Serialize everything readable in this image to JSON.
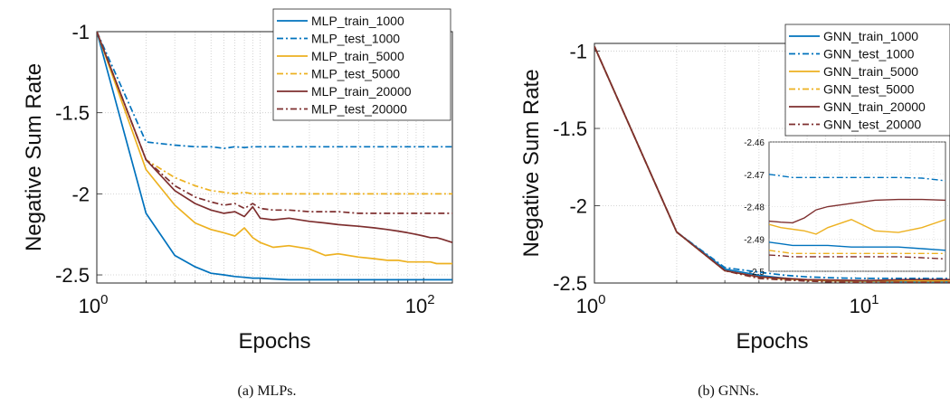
{
  "captions": [
    "(a)  MLPs.",
    "(b)  GNNs."
  ],
  "chart_data": [
    {
      "type": "line",
      "xlabel": "Epochs",
      "ylabel": "Negative Sum Rate",
      "xscale": "log",
      "xlim": [
        1,
        150
      ],
      "ylim": [
        -2.55,
        -1
      ],
      "grid": "dotted",
      "legend": "top-right",
      "x_tick_labels": [
        {
          "base": "10",
          "exp": "0"
        },
        {
          "base": "10",
          "exp": "2"
        }
      ],
      "y_tick_labels": [
        "-1",
        "-1.5",
        "-2",
        "-2.5"
      ],
      "x": [
        1,
        2,
        3,
        4,
        5,
        6,
        7,
        8,
        9,
        10,
        12,
        15,
        20,
        25,
        30,
        40,
        50,
        60,
        70,
        80,
        90,
        100,
        110,
        120,
        130,
        140,
        150
      ],
      "series": [
        {
          "name": "MLP_train_1000",
          "color": "#0072BD",
          "dash": "solid",
          "values": [
            -1.0,
            -2.12,
            -2.38,
            -2.45,
            -2.49,
            -2.5,
            -2.51,
            -2.515,
            -2.52,
            -2.52,
            -2.525,
            -2.53,
            -2.53,
            -2.53,
            -2.53,
            -2.53,
            -2.53,
            -2.53,
            -2.53,
            -2.53,
            -2.53,
            -2.53,
            -2.53,
            -2.53,
            -2.53,
            -2.53,
            -2.53
          ]
        },
        {
          "name": "MLP_test_1000",
          "color": "#0072BD",
          "dash": "dash-dot",
          "values": [
            -1.0,
            -1.68,
            -1.7,
            -1.71,
            -1.71,
            -1.72,
            -1.71,
            -1.715,
            -1.71,
            -1.71,
            -1.71,
            -1.71,
            -1.71,
            -1.71,
            -1.71,
            -1.71,
            -1.71,
            -1.71,
            -1.71,
            -1.71,
            -1.71,
            -1.71,
            -1.71,
            -1.71,
            -1.71,
            -1.71,
            -1.71
          ]
        },
        {
          "name": "MLP_train_5000",
          "color": "#EDB120",
          "dash": "solid",
          "values": [
            -1.0,
            -1.85,
            -2.07,
            -2.18,
            -2.22,
            -2.24,
            -2.26,
            -2.21,
            -2.27,
            -2.3,
            -2.33,
            -2.32,
            -2.34,
            -2.38,
            -2.37,
            -2.39,
            -2.4,
            -2.41,
            -2.41,
            -2.42,
            -2.42,
            -2.42,
            -2.42,
            -2.43,
            -2.43,
            -2.43,
            -2.43
          ]
        },
        {
          "name": "MLP_test_5000",
          "color": "#EDB120",
          "dash": "dash-dot",
          "values": [
            -1.0,
            -1.79,
            -1.9,
            -1.95,
            -1.98,
            -1.99,
            -2.0,
            -1.99,
            -2.0,
            -2.0,
            -2.0,
            -2.0,
            -2.0,
            -2.0,
            -2.0,
            -2.0,
            -2.0,
            -2.0,
            -2.0,
            -2.0,
            -2.0,
            -2.0,
            -2.0,
            -2.0,
            -2.0,
            -2.0,
            -2.0
          ]
        },
        {
          "name": "MLP_train_20000",
          "color": "#7E2F2F",
          "dash": "solid",
          "values": [
            -1.0,
            -1.79,
            -1.98,
            -2.06,
            -2.1,
            -2.12,
            -2.11,
            -2.14,
            -2.08,
            -2.15,
            -2.16,
            -2.15,
            -2.17,
            -2.18,
            -2.19,
            -2.2,
            -2.21,
            -2.22,
            -2.23,
            -2.24,
            -2.25,
            -2.26,
            -2.27,
            -2.27,
            -2.28,
            -2.29,
            -2.3
          ]
        },
        {
          "name": "MLP_test_20000",
          "color": "#7E2F2F",
          "dash": "dash-dot",
          "values": [
            -1.0,
            -1.79,
            -1.95,
            -2.02,
            -2.05,
            -2.07,
            -2.06,
            -2.09,
            -2.06,
            -2.09,
            -2.1,
            -2.1,
            -2.11,
            -2.11,
            -2.11,
            -2.12,
            -2.12,
            -2.12,
            -2.12,
            -2.12,
            -2.12,
            -2.12,
            -2.12,
            -2.12,
            -2.12,
            -2.12,
            -2.12
          ]
        }
      ]
    },
    {
      "type": "line",
      "xlabel": "Epochs",
      "ylabel": "Negative Sum Rate",
      "xscale": "log",
      "xlim": [
        1,
        20
      ],
      "ylim": [
        -2.5,
        -0.95
      ],
      "grid": "dotted",
      "legend": "top-right",
      "x_tick_labels": [
        {
          "base": "10",
          "exp": "0"
        },
        {
          "base": "10",
          "exp": "1"
        }
      ],
      "y_tick_labels": [
        "-1",
        "-1.5",
        "-2",
        "-2.5"
      ],
      "x": [
        1,
        2,
        3,
        4,
        5,
        6,
        7,
        8,
        9,
        10,
        12,
        14,
        16,
        18,
        20
      ],
      "series": [
        {
          "name": "GNN_train_1000",
          "color": "#0072BD",
          "dash": "solid",
          "values": [
            -0.97,
            -2.17,
            -2.41,
            -2.45,
            -2.47,
            -2.48,
            -2.485,
            -2.488,
            -2.489,
            -2.49,
            -2.491,
            -2.491,
            -2.491,
            -2.491,
            -2.491
          ]
        },
        {
          "name": "GNN_test_1000",
          "color": "#0072BD",
          "dash": "dash-dot",
          "values": [
            -0.97,
            -2.17,
            -2.4,
            -2.43,
            -2.45,
            -2.46,
            -2.465,
            -2.468,
            -2.469,
            -2.47,
            -2.47,
            -2.47,
            -2.47,
            -2.471,
            -2.471
          ]
        },
        {
          "name": "GNN_train_5000",
          "color": "#EDB120",
          "dash": "solid",
          "values": [
            -0.97,
            -2.17,
            -2.42,
            -2.46,
            -2.475,
            -2.48,
            -2.485,
            -2.486,
            -2.487,
            -2.488,
            -2.486,
            -2.484,
            -2.487,
            -2.486,
            -2.484
          ]
        },
        {
          "name": "GNN_test_5000",
          "color": "#EDB120",
          "dash": "dash-dot",
          "values": [
            -0.97,
            -2.17,
            -2.42,
            -2.47,
            -2.48,
            -2.485,
            -2.49,
            -2.492,
            -2.493,
            -2.494,
            -2.494,
            -2.494,
            -2.494,
            -2.494,
            -2.494
          ]
        },
        {
          "name": "GNN_train_20000",
          "color": "#7E2F2F",
          "dash": "solid",
          "values": [
            -0.97,
            -2.17,
            -2.42,
            -2.46,
            -2.47,
            -2.478,
            -2.48,
            -2.482,
            -2.483,
            -2.484,
            -2.48,
            -2.478,
            -2.478,
            -2.478,
            -2.478
          ]
        },
        {
          "name": "GNN_test_20000",
          "color": "#7E2F2F",
          "dash": "dash-dot",
          "values": [
            -0.97,
            -2.17,
            -2.42,
            -2.47,
            -2.48,
            -2.488,
            -2.492,
            -2.494,
            -2.495,
            -2.495,
            -2.495,
            -2.495,
            -2.495,
            -2.495,
            -2.496
          ]
        }
      ],
      "inset": {
        "type": "line",
        "xlim": [
          5,
          20
        ],
        "ylim": [
          -2.5,
          -2.46
        ],
        "y_tick_labels": [
          "-2.46",
          "-2.47",
          "-2.48",
          "-2.49",
          "-2.5"
        ],
        "x": [
          5,
          6,
          7,
          8,
          9,
          10,
          12,
          14,
          16,
          18,
          20
        ],
        "series": [
          {
            "name": "GNN_train_1000",
            "values": [
              -2.491,
              -2.4915,
              -2.492,
              -2.492,
              -2.492,
              -2.492,
              -2.4925,
              -2.4925,
              -2.4925,
              -2.493,
              -2.4935
            ]
          },
          {
            "name": "GNN_test_1000",
            "values": [
              -2.47,
              -2.4705,
              -2.471,
              -2.471,
              -2.471,
              -2.471,
              -2.471,
              -2.471,
              -2.471,
              -2.4712,
              -2.472
            ]
          },
          {
            "name": "GNN_train_5000",
            "values": [
              -2.4855,
              -2.4865,
              -2.487,
              -2.4875,
              -2.4885,
              -2.4865,
              -2.484,
              -2.4875,
              -2.488,
              -2.4865,
              -2.484
            ]
          },
          {
            "name": "GNN_test_5000",
            "values": [
              -2.4935,
              -2.494,
              -2.4945,
              -2.4945,
              -2.4945,
              -2.4945,
              -2.4945,
              -2.4945,
              -2.4945,
              -2.4945,
              -2.4945
            ]
          },
          {
            "name": "GNN_train_20000",
            "values": [
              -2.4845,
              -2.4848,
              -2.485,
              -2.4835,
              -2.481,
              -2.48,
              -2.479,
              -2.478,
              -2.4778,
              -2.4778,
              -2.478
            ]
          },
          {
            "name": "GNN_test_20000",
            "values": [
              -2.495,
              -2.4952,
              -2.4955,
              -2.4955,
              -2.4955,
              -2.4955,
              -2.4955,
              -2.4955,
              -2.4955,
              -2.4958,
              -2.4962
            ]
          }
        ]
      }
    }
  ]
}
